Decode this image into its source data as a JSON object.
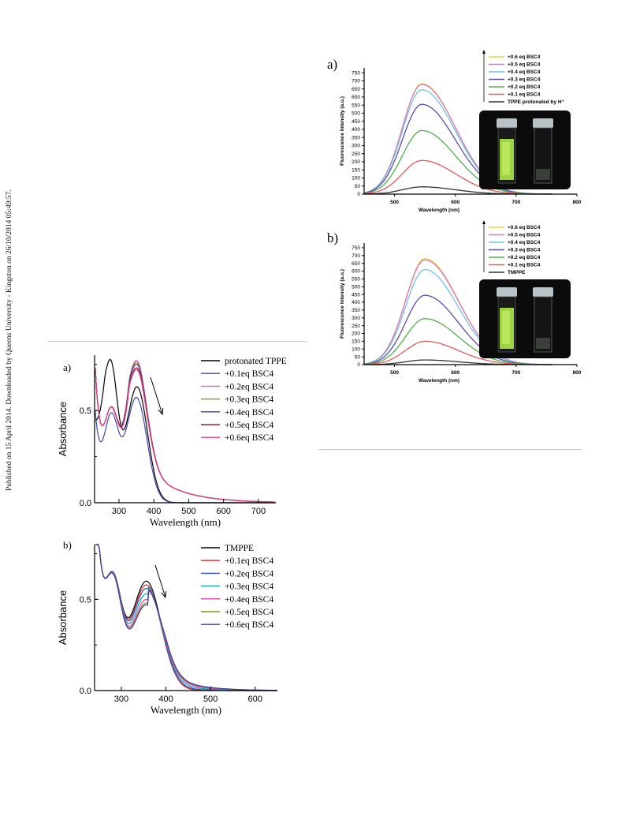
{
  "sidebar": {
    "citation": "Published on 15 April 2014. Downloaded by Queens University - Kingston on 26/10/2014 05:49:57."
  },
  "figure_right": {
    "a": {
      "letter": "a)",
      "chart_data": {
        "type": "line",
        "xlabel": "Wavelength (nm)",
        "ylabel": "Fluorescence Intensity (a.u.)",
        "xlim": [
          450,
          800
        ],
        "ylim": [
          0,
          780
        ],
        "xticks": [
          "500",
          "600",
          "700",
          "800"
        ],
        "yticks": [
          "0",
          "50",
          "100",
          "150",
          "200",
          "250",
          "300",
          "350",
          "400",
          "450",
          "500",
          "550",
          "600",
          "650",
          "700",
          "750"
        ],
        "peak_x": 545,
        "series": [
          {
            "name": "+0.6 eq BSC4",
            "color": "#e6d83a",
            "peak": 682
          },
          {
            "name": "+0.5 eq BSC4",
            "color": "#d873c8",
            "peak": 678
          },
          {
            "name": "+0.4 eq BSC4",
            "color": "#6fc4e0",
            "peak": 645
          },
          {
            "name": "+0.3 eq BSC4",
            "color": "#5b4ca6",
            "peak": 555
          },
          {
            "name": "+0.2 eq BSC4",
            "color": "#4fb04a",
            "peak": 393
          },
          {
            "name": "+0.1 eq BSC4",
            "color": "#e65a5a",
            "peak": 208
          },
          {
            "name": "TPPE protonated by H⁺",
            "color": "#333333",
            "peak": 45
          }
        ]
      }
    },
    "b": {
      "letter": "b)",
      "chart_data": {
        "type": "line",
        "xlabel": "Wavelength (nm)",
        "ylabel": "Fluorescence Intensity (a.u.)",
        "xlim": [
          450,
          800
        ],
        "ylim": [
          0,
          780
        ],
        "xticks": [
          "500",
          "600",
          "700",
          "800"
        ],
        "yticks": [
          "0",
          "50",
          "100",
          "150",
          "200",
          "250",
          "300",
          "350",
          "400",
          "450",
          "500",
          "550",
          "600",
          "650",
          "700",
          "750"
        ],
        "peak_x": 550,
        "series": [
          {
            "name": "+0.6 eq BSC4",
            "color": "#e6d83a",
            "peak": 680
          },
          {
            "name": "+0.5 eq BSC4",
            "color": "#d873c8",
            "peak": 672
          },
          {
            "name": "+0.4 eq BSC4",
            "color": "#6fc4e0",
            "peak": 610
          },
          {
            "name": "+0.3 eq BSC4",
            "color": "#5b4ca6",
            "peak": 445
          },
          {
            "name": "+0.2 eq BSC4",
            "color": "#4fb04a",
            "peak": 295
          },
          {
            "name": "+0.1 eq BSC4",
            "color": "#e65a5a",
            "peak": 150
          },
          {
            "name": "TMPPE",
            "color": "#333333",
            "peak": 30
          }
        ]
      }
    }
  },
  "figure_left": {
    "a": {
      "letter": "a)",
      "chart_data": {
        "type": "line",
        "xlabel": "Wavelength (nm)",
        "ylabel": "Absorbance",
        "xlim": [
          230,
          750
        ],
        "ylim": [
          0,
          0.8
        ],
        "xticks": [
          {
            "v": 300,
            "t": "300"
          },
          {
            "v": 400,
            "t": "400"
          },
          {
            "v": 500,
            "t": "500"
          },
          {
            "v": 600,
            "t": "600"
          },
          {
            "v": 700,
            "t": "700"
          }
        ],
        "yticks": [
          {
            "v": 0,
            "t": "0.0"
          },
          {
            "v": 0.5,
            "t": "0.5"
          }
        ],
        "series": [
          {
            "name": "protonated TPPE",
            "color": "#000000",
            "a0": 0.43,
            "a1": 0.64
          },
          {
            "name": "+0.1eq BSC4",
            "color": "#3f48b0",
            "a0": 0.52,
            "a1": 0.63
          },
          {
            "name": "+0.2eq BSC4",
            "color": "#e060c8",
            "a0": 0.78,
            "a1": 0.61
          },
          {
            "name": "+0.3eq BSC4",
            "color": "#8a8a1e",
            "a0": 0.78,
            "a1": 0.6
          },
          {
            "name": "+0.4eq BSC4",
            "color": "#463a9a",
            "a0": 0.78,
            "a1": 0.59
          },
          {
            "name": "+0.5eq BSC4",
            "color": "#9b2030",
            "a0": 0.78,
            "a1": 0.57
          },
          {
            "name": "+0.6eq BSC4",
            "color": "#e8408a",
            "a0": 0.78,
            "a1": 0.56
          }
        ]
      }
    },
    "b": {
      "letter": "b)",
      "chart_data": {
        "type": "line",
        "xlabel": "Wavelength (nm)",
        "ylabel": "Absorbance",
        "xlim": [
          240,
          650
        ],
        "ylim": [
          0,
          0.8
        ],
        "xticks": [
          {
            "v": 300,
            "t": "300"
          },
          {
            "v": 400,
            "t": "400"
          },
          {
            "v": 500,
            "t": "500"
          },
          {
            "v": 600,
            "t": "600"
          }
        ],
        "yticks": [
          {
            "v": 0,
            "t": "0.0"
          },
          {
            "v": 0.5,
            "t": "0.5"
          }
        ],
        "series": [
          {
            "name": "TMPPE",
            "color": "#000000",
            "a1": 0.68
          },
          {
            "name": "+0.1eq BSC4",
            "color": "#e03030",
            "a1": 0.66
          },
          {
            "name": "+0.2eq BSC4",
            "color": "#3050c0",
            "a1": 0.64
          },
          {
            "name": "+0.3eq BSC4",
            "color": "#10a0a8",
            "a1": 0.61
          },
          {
            "name": "+0.4eq BSC4",
            "color": "#e040b0",
            "a1": 0.58
          },
          {
            "name": "+0.5eq BSC4",
            "color": "#8a8a1e",
            "a1": 0.56
          },
          {
            "name": "+0.6eq BSC4",
            "color": "#4a38a8",
            "a1": 0.55
          }
        ]
      }
    }
  }
}
